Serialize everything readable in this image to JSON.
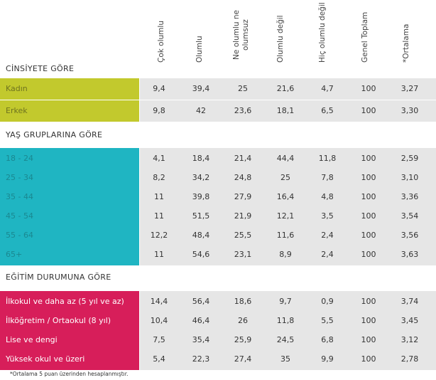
{
  "columns": [
    "Çok olumlu",
    "Olumlu",
    "Ne olumlu ne olumsuz",
    "Olumlu değil",
    "Hiç olumlu değil",
    "Genel Toplam",
    "*Ortalama"
  ],
  "sections": [
    {
      "title": "CİNSİYETE GÖRE",
      "color": "#c2c92d",
      "rows": [
        {
          "label": "Kadın",
          "values": [
            "9,4",
            "39,4",
            "25",
            "21,6",
            "4,7",
            "100",
            "3,27"
          ]
        },
        {
          "label": "Erkek",
          "values": [
            "9,8",
            "42",
            "23,6",
            "18,1",
            "6,5",
            "100",
            "3,30"
          ]
        }
      ]
    },
    {
      "title": "YAŞ GRUPLARINA GÖRE",
      "color": "#1fb5c2",
      "rows": [
        {
          "label": "18 - 24",
          "values": [
            "4,1",
            "18,4",
            "21,4",
            "44,4",
            "11,8",
            "100",
            "2,59"
          ]
        },
        {
          "label": "25 - 34",
          "values": [
            "8,2",
            "34,2",
            "24,8",
            "25",
            "7,8",
            "100",
            "3,10"
          ]
        },
        {
          "label": "35 - 44",
          "values": [
            "11",
            "39,8",
            "27,9",
            "16,4",
            "4,8",
            "100",
            "3,36"
          ]
        },
        {
          "label": "45 - 54",
          "values": [
            "11",
            "51,5",
            "21,9",
            "12,1",
            "3,5",
            "100",
            "3,54"
          ]
        },
        {
          "label": "55 - 64",
          "values": [
            "12,2",
            "48,4",
            "25,5",
            "11,6",
            "2,4",
            "100",
            "3,56"
          ]
        },
        {
          "label": "65+",
          "values": [
            "11",
            "54,6",
            "23,1",
            "8,9",
            "2,4",
            "100",
            "3,63"
          ]
        }
      ]
    },
    {
      "title": "EĞİTİM DURUMUNA GÖRE",
      "color": "#d71e5a",
      "rows": [
        {
          "label": "İlkokul ve daha az (5 yıl ve az)",
          "values": [
            "14,4",
            "56,4",
            "18,6",
            "9,7",
            "0,9",
            "100",
            "3,74"
          ]
        },
        {
          "label": "İlköğretim / Ortaokul (8 yıl)",
          "values": [
            "10,4",
            "46,4",
            "26",
            "11,8",
            "5,5",
            "100",
            "3,45"
          ]
        },
        {
          "label": "Lise ve dengi",
          "values": [
            "7,5",
            "35,4",
            "25,9",
            "24,5",
            "6,8",
            "100",
            "3,12"
          ]
        },
        {
          "label": "Yüksek okul ve üzeri",
          "values": [
            "5,4",
            "22,3",
            "27,4",
            "35",
            "9,9",
            "100",
            "2,78"
          ]
        }
      ]
    }
  ],
  "footnote": "*Ortalama 5 puan üzerinden hesaplanmıştır."
}
